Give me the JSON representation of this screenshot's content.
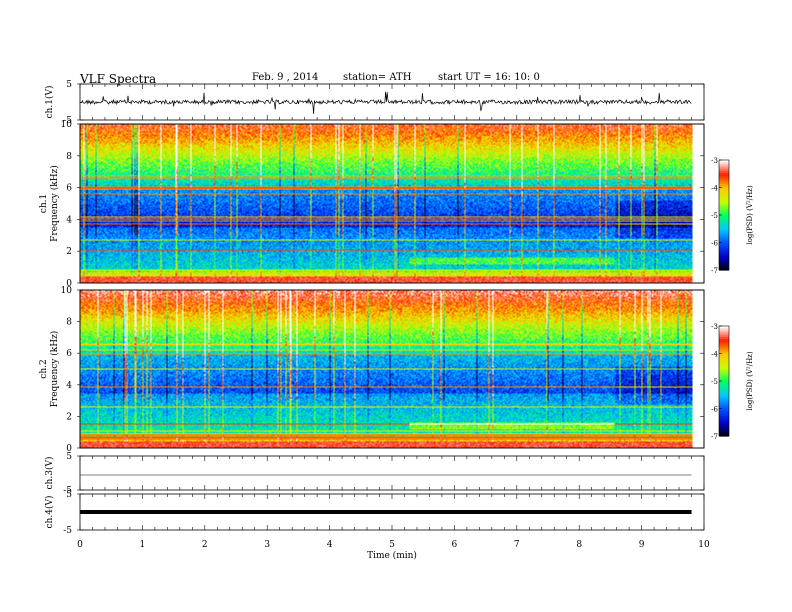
{
  "header": {
    "title": "VLF  Spectra",
    "date": "Feb. 9  , 2014",
    "station": "station= ATH",
    "start": "start  UT  =   16: 10: 0"
  },
  "chart_data": [
    {
      "type": "line",
      "panel": "ch1-waveform",
      "ylabel": "ch.1(V)",
      "ylim": [
        -5,
        5
      ],
      "yticks": [
        "5",
        "-5"
      ],
      "x_extent_min": [
        0,
        9.8
      ],
      "series_level": 0
    },
    {
      "type": "heatmap",
      "panel": "ch1-spectrogram",
      "ylabel_prefix": "ch.1",
      "ylabel": "Frequency  (kHz)",
      "ylim": [
        0,
        10
      ],
      "yticks": [
        "0",
        "2",
        "4",
        "6",
        "8",
        "10"
      ],
      "x_extent_min": [
        0,
        9.8
      ],
      "colorbar": {
        "label": "log(PSD) (V²/Hz)",
        "ticks": [
          "-3",
          "-4",
          "-5",
          "-6",
          "-7"
        ],
        "range": [
          -7,
          -3
        ]
      }
    },
    {
      "type": "heatmap",
      "panel": "ch2-spectrogram",
      "ylabel_prefix": "ch.2",
      "ylabel": "Frequency  (kHz)",
      "ylim": [
        0,
        10
      ],
      "yticks": [
        "0",
        "2",
        "4",
        "6",
        "8",
        "10"
      ],
      "x_extent_min": [
        0,
        9.8
      ],
      "colorbar": {
        "label": "log(PSD) (V²/Hz)",
        "ticks": [
          "-3",
          "-4",
          "-5",
          "-6",
          "-7"
        ],
        "range": [
          -7,
          -3
        ]
      }
    },
    {
      "type": "line",
      "panel": "ch3-waveform",
      "ylabel": "ch.3(V)",
      "ylim": [
        -5,
        5
      ],
      "yticks": [
        "5",
        "-5"
      ],
      "x_extent_min": [
        0,
        9.8
      ],
      "series_level": 0
    },
    {
      "type": "line",
      "panel": "ch4-waveform",
      "ylabel": "ch.4(V)",
      "ylim": [
        -5,
        5
      ],
      "yticks": [
        "5",
        "-5"
      ],
      "x_extent_min": [
        0,
        9.8
      ],
      "series_level": 0
    }
  ],
  "xaxis": {
    "xlabel": "Time  (min)",
    "xlim": [
      0,
      10
    ],
    "ticks": [
      "0",
      "1",
      "2",
      "3",
      "4",
      "5",
      "6",
      "7",
      "8",
      "9",
      "10"
    ]
  },
  "colors": {
    "colormap": [
      "#000000",
      "#0000c8",
      "#0050ff",
      "#00c8ff",
      "#00ff60",
      "#c8ff00",
      "#ffc800",
      "#ff2000",
      "#ffffff"
    ],
    "frame": "#000000"
  }
}
